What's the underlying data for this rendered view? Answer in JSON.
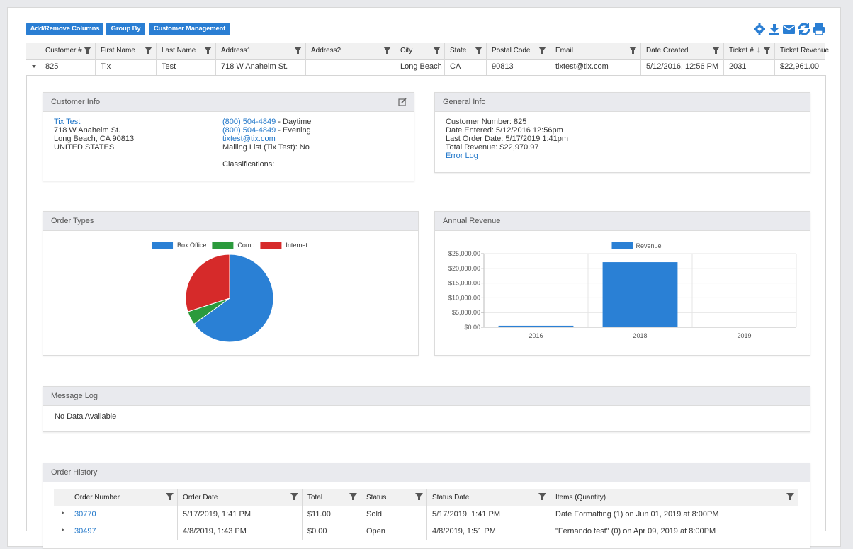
{
  "toolbar": {
    "buttons": [
      "Add/Remove Columns",
      "Group By",
      "Customer Management"
    ]
  },
  "grid": {
    "columns": [
      "Customer #",
      "First Name",
      "Last Name",
      "Address1",
      "Address2",
      "City",
      "State",
      "Postal Code",
      "Email",
      "Date Created",
      "Ticket #",
      "Ticket Revenue"
    ],
    "rows": [
      [
        "825",
        "Tix",
        "Test",
        "718 W Anaheim St.",
        null,
        "Long Beach",
        "CA",
        "90813",
        "tixtest@tix.com",
        "5/12/2016, 12:56 PM",
        "2031",
        "$22,961.00"
      ]
    ]
  },
  "customer_info": {
    "title": "Customer Info",
    "name": "Tix Test",
    "address": [
      "718 W Anaheim St.",
      "Long Beach, CA 90813",
      "UNITED STATES"
    ],
    "phones": [
      {
        "number": "(800) 504-4849",
        "label": " - Daytime"
      },
      {
        "number": "(800) 504-4849",
        "label": " - Evening"
      }
    ],
    "email": "tixtest@tix.com",
    "mailing_list": "Mailing List (Tix Test): No",
    "classifications": "Classifications:"
  },
  "general_info": {
    "title": "General Info",
    "lines": [
      "Customer Number: 825",
      "Date Entered: 5/12/2016 12:56pm",
      "Last Order Date: 5/17/2019 1:41pm",
      "Total Revenue: $22,970.97"
    ],
    "link": "Error Log"
  },
  "chart_data": [
    {
      "type": "pie",
      "title": "Order Types",
      "categories": [
        "Box Office",
        "Comp",
        "Internet"
      ],
      "values": [
        65,
        5,
        30
      ],
      "colors": [
        "#2a80d5",
        "#2b9a3c",
        "#d62a2a"
      ]
    },
    {
      "type": "bar",
      "title": "Annual Revenue",
      "categories": [
        "2016",
        "2018",
        "2019"
      ],
      "series": [
        {
          "name": "Revenue",
          "color": "#2a80d5",
          "values": [
            500,
            22100,
            20
          ]
        }
      ],
      "ylim": [
        0,
        25000
      ],
      "yticks": [
        {
          "value": 0,
          "label": "$0.00"
        },
        {
          "value": 5000,
          "label": "$5,000.00"
        },
        {
          "value": 10000,
          "label": "$10,000.00"
        },
        {
          "value": 15000,
          "label": "$15,000.00"
        },
        {
          "value": 20000,
          "label": "$20,000.00"
        },
        {
          "value": 25000,
          "label": "$25,000.00"
        }
      ],
      "grid": true
    }
  ],
  "message_log": {
    "title": "Message Log",
    "text": "No Data Available"
  },
  "order_history": {
    "title": "Order History",
    "columns": [
      "Order Number",
      "Order Date",
      "Total",
      "Status",
      "Status Date",
      "Items (Quantity)"
    ],
    "rows": [
      [
        "30770",
        "5/17/2019, 1:41 PM",
        "$11.00",
        "Sold",
        "5/17/2019, 1:41 PM",
        "Date Formatting (1) on Jun 01, 2019 at 8:00PM"
      ],
      [
        "30497",
        "4/8/2019, 1:43 PM",
        "$0.00",
        "Open",
        "4/8/2019, 1:51 PM",
        "\"Fernando test\" (0) on Apr 09, 2019 at 8:00PM"
      ]
    ]
  }
}
